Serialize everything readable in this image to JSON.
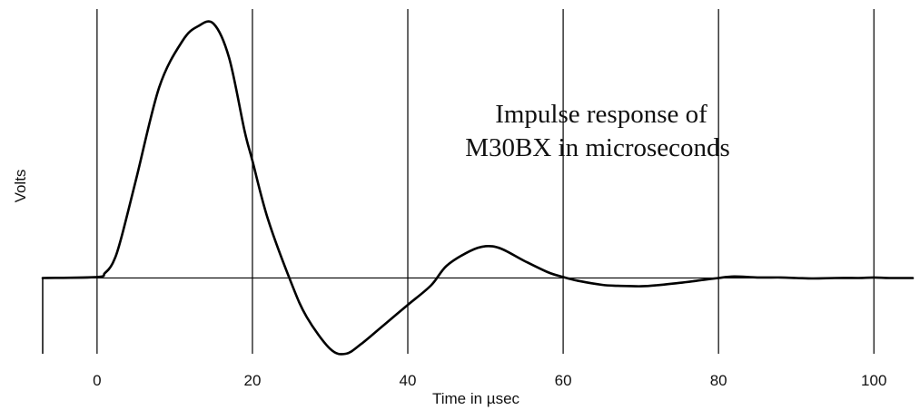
{
  "colors": {
    "line": "#000000",
    "grid": "#000000",
    "text": "#111111",
    "background": "#ffffff"
  },
  "chart_data": {
    "type": "line",
    "title": "",
    "xlabel": "Time in µsec",
    "ylabel": "Volts",
    "xlim": [
      -7,
      105
    ],
    "ylim": [
      -1.55,
      5.5
    ],
    "x_ticks": [
      0,
      20,
      40,
      60,
      80,
      100
    ],
    "x_tick_labels": [
      "0",
      "20",
      "40",
      "60",
      "80",
      "100"
    ],
    "grid": "vertical",
    "baseline": 0,
    "annotation": [
      "Impulse response of",
      "M30BX in microseconds"
    ],
    "series": [
      {
        "x": [
          -7,
          0,
          1,
          2,
          3,
          5,
          8,
          11,
          13,
          15,
          17,
          19,
          20,
          22,
          25,
          27,
          30,
          32,
          34,
          37,
          40,
          43,
          45,
          48,
          50,
          52,
          55,
          58,
          60,
          62,
          65,
          67,
          70,
          72,
          75,
          78,
          80,
          82,
          85,
          88,
          90,
          92,
          95,
          98,
          100,
          102,
          105
        ],
        "y": [
          0,
          0.02,
          0.1,
          0.3,
          0.75,
          2.0,
          3.9,
          4.85,
          5.15,
          5.2,
          4.5,
          3.0,
          2.4,
          1.2,
          -0.1,
          -0.8,
          -1.45,
          -1.55,
          -1.35,
          -0.95,
          -0.55,
          -0.15,
          0.25,
          0.55,
          0.65,
          0.6,
          0.35,
          0.12,
          0.02,
          -0.06,
          -0.14,
          -0.16,
          -0.17,
          -0.15,
          -0.1,
          -0.04,
          0.0,
          0.03,
          0.01,
          0.01,
          0.0,
          -0.01,
          0.0,
          0.0,
          0.01,
          0.0,
          0.0
        ]
      }
    ]
  }
}
